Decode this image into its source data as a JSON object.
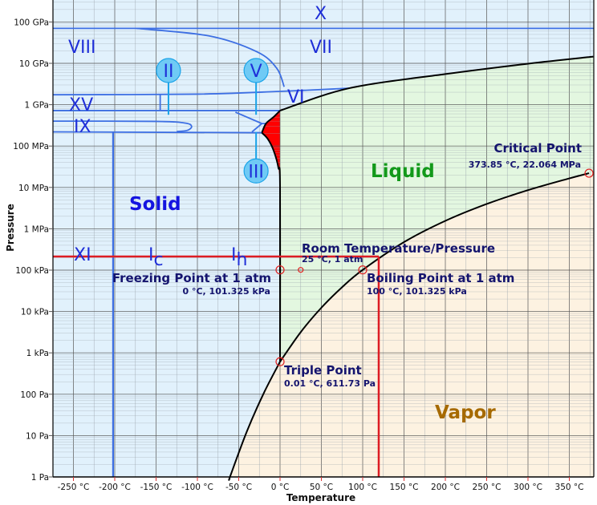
{
  "chart_data": {
    "type": "line",
    "xlabel": "Temperature",
    "ylabel": "Pressure",
    "xlim": [
      -275,
      380
    ],
    "ylim_pa": [
      1,
      300000000000
    ],
    "yscale": "log",
    "grid": true,
    "x_ticks": [
      {
        "v": -250,
        "label": "-250 °C"
      },
      {
        "v": -200,
        "label": "-200 °C"
      },
      {
        "v": -150,
        "label": "-150 °C"
      },
      {
        "v": -100,
        "label": "-100 °C"
      },
      {
        "v": -50,
        "label": "-50 °C"
      },
      {
        "v": 0,
        "label": "0 °C"
      },
      {
        "v": 50,
        "label": "50 °C"
      },
      {
        "v": 100,
        "label": "100 °C"
      },
      {
        "v": 150,
        "label": "150 °C"
      },
      {
        "v": 200,
        "label": "200 °C"
      },
      {
        "v": 250,
        "label": "250 °C"
      },
      {
        "v": 300,
        "label": "300 °C"
      },
      {
        "v": 350,
        "label": "350 °C"
      }
    ],
    "y_ticks": [
      {
        "v": 1,
        "label": "1 Pa"
      },
      {
        "v": 10,
        "label": "10 Pa"
      },
      {
        "v": 100,
        "label": "100 Pa"
      },
      {
        "v": 1000,
        "label": "1 kPa"
      },
      {
        "v": 10000,
        "label": "10 kPa"
      },
      {
        "v": 100000,
        "label": "100 kPa"
      },
      {
        "v": 1000000,
        "label": "1 MPa"
      },
      {
        "v": 10000000,
        "label": "10 MPa"
      },
      {
        "v": 100000000,
        "label": "100 MPa"
      },
      {
        "v": 1000000000,
        "label": "1 GPa"
      },
      {
        "v": 10000000000,
        "label": "10 GPa"
      },
      {
        "v": 100000000000,
        "label": "100 GPa"
      }
    ],
    "colors": {
      "solid_region": "#e1f1fc",
      "liquid_region": "#e3f7e0",
      "vapor_region": "#fdf2e1",
      "metastable_region": "#ff0000",
      "phase_boundary": "#000000",
      "ice_boundary": "#3d6fe3",
      "marker_stem": "#1aa3e8",
      "marker_fill": "#6fcaf5",
      "crosshair": "#dd1c24",
      "solid_label": "#1414e0",
      "liquid_label": "#12991a",
      "vapor_label": "#a66a00",
      "annotation": "#14146e"
    },
    "boundaries": {
      "vaporization": [
        [
          0.01,
          611.73
        ],
        [
          25,
          3170
        ],
        [
          50,
          12350
        ],
        [
          75,
          38580
        ],
        [
          100,
          101325
        ],
        [
          150,
          476000
        ],
        [
          200,
          1554000
        ],
        [
          250,
          3973000
        ],
        [
          300,
          8581000
        ],
        [
          350,
          16530000
        ],
        [
          373.85,
          22064000
        ]
      ],
      "sublimation": [
        [
          0.01,
          611.73
        ],
        [
          -20,
          103
        ],
        [
          -40,
          12.8
        ],
        [
          -60,
          1.08
        ],
        [
          -61,
          0.9
        ]
      ],
      "melting_ih": [
        [
          0.01,
          611.73
        ],
        [
          0,
          10000000
        ],
        [
          -2,
          30000000
        ],
        [
          -8,
          80000000
        ],
        [
          -15,
          150000000
        ],
        [
          -22,
          210000000
        ]
      ],
      "melting_iii_v": [
        [
          -22,
          210000000
        ],
        [
          -17,
          350000000
        ],
        [
          -8,
          500000000
        ],
        [
          0,
          720000000
        ]
      ],
      "melting_high": [
        [
          0,
          720000000
        ],
        [
          83.5,
          2500000000
        ],
        [
          200,
          5500000000
        ],
        [
          300,
          9800000000
        ],
        [
          379,
          14500000000
        ]
      ],
      "x_vii": [
        [
          -275,
          70000000000
        ],
        [
          380,
          70000000000
        ]
      ],
      "viii_vii": [
        [
          -174,
          70000000000
        ],
        [
          -86,
          46000000000
        ],
        [
          -28,
          19000000000
        ],
        [
          -4,
          7600000000
        ],
        [
          5,
          2700000000
        ]
      ],
      "vi_upper": [
        [
          -275,
          1740000000
        ],
        [
          -100,
          1800000000
        ],
        [
          0,
          2100000000
        ],
        [
          83.5,
          2500000000
        ]
      ],
      "vi_lower": [
        [
          -275,
          720000000
        ],
        [
          0,
          720000000
        ]
      ],
      "xv_divider": [
        [
          -145,
          720000000
        ],
        [
          -145,
          1740000000
        ]
      ],
      "ix_loop": [
        [
          -275,
          400000000
        ],
        [
          -150,
          395000000
        ],
        [
          -115,
          360000000
        ],
        [
          -107,
          300000000
        ],
        [
          -112,
          240000000
        ],
        [
          -125,
          224000000
        ]
      ],
      "iii_lower": [
        [
          -275,
          220000000
        ],
        [
          -22,
          210000000
        ]
      ],
      "ii_v": [
        [
          -54,
          660000000
        ],
        [
          -22,
          350000000
        ]
      ],
      "iii_v": [
        [
          -34,
          220000000
        ],
        [
          -22,
          350000000
        ],
        [
          -17,
          350000000
        ]
      ],
      "xi_ih": [
        [
          -202,
          1
        ],
        [
          -202,
          220000000
        ]
      ]
    },
    "phases": {
      "x": "X",
      "viii": "VIII",
      "vii": "VII",
      "vi": "VI",
      "xv": "XV",
      "ix": "IX",
      "xi": "XI",
      "ic": "I",
      "ic_sub": "c",
      "ih": "I",
      "ih_sub": "h",
      "solid": "Solid",
      "liquid": "Liquid",
      "vapor": "Vapor"
    },
    "circle_markers": [
      {
        "label": "II",
        "t": -135,
        "p": 6700000000,
        "stem_to": 570000000
      },
      {
        "label": "V",
        "t": -29,
        "p": 6700000000,
        "stem_to": 570000000
      },
      {
        "label": "III",
        "t": -29,
        "p": 25000000,
        "stem_to": 220000000
      }
    ],
    "points": {
      "critical": {
        "title": "Critical Point",
        "detail": "373.85 °C, 22.064 MPa",
        "t": 373.85,
        "p": 22064000
      },
      "room": {
        "title": "Room Temperature/Pressure",
        "detail": "25 °C, 1 atm",
        "t": 25,
        "p": 101325
      },
      "freezing": {
        "title": "Freezing Point at 1 atm",
        "detail": "0 °C, 101.325 kPa",
        "t": 0,
        "p": 101325
      },
      "boiling": {
        "title": "Boiling Point at 1 atm",
        "detail": "100 °C, 101.325 kPa",
        "t": 100,
        "p": 101325
      },
      "triple": {
        "title": "Triple Point",
        "detail": "0.01 °C, 611.73 Pa",
        "t": 0.01,
        "p": 611.73
      }
    },
    "crosshair": {
      "t": 119.4,
      "p": 214000
    }
  }
}
